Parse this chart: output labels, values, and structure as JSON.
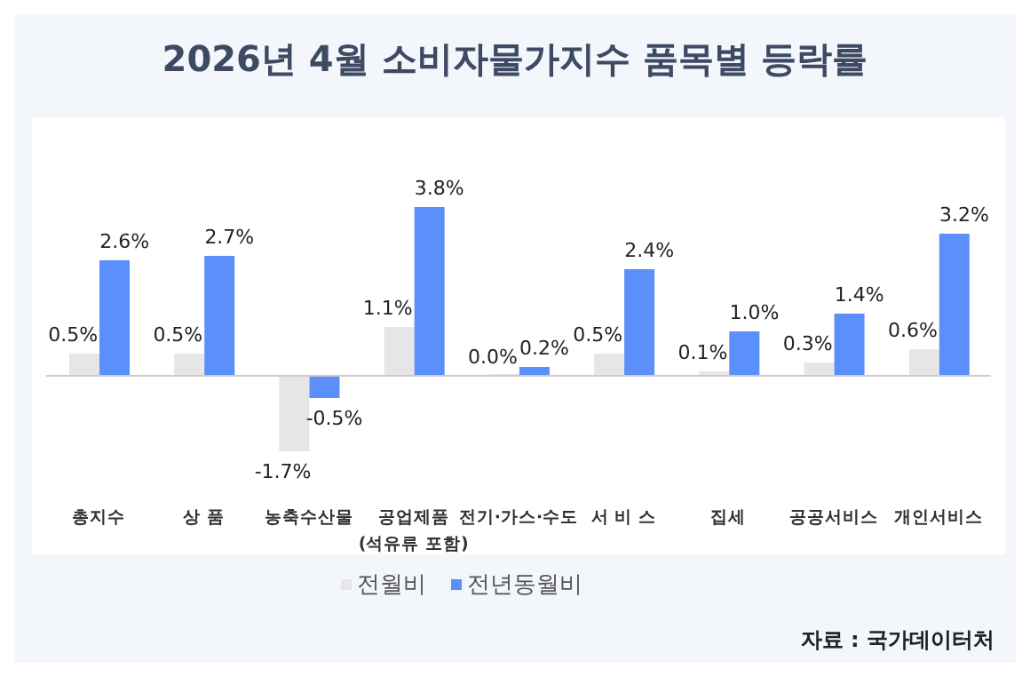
{
  "chart_data": {
    "type": "bar",
    "title": "2026년 4월 소비자물가지수 품목별 등락률",
    "categories": [
      "총지수",
      "상 품",
      "농축수산물",
      "공업제품\n(석유류 포함)",
      "전기·가스·수도",
      "서 비 스",
      "집세",
      "공공서비스",
      "개인서비스"
    ],
    "series": [
      {
        "name": "전월비",
        "color": "#e6e6e6",
        "values": [
          0.5,
          0.5,
          -1.7,
          1.1,
          0.0,
          0.5,
          0.1,
          0.3,
          0.6
        ],
        "value_labels": [
          "0.5%",
          "0.5%",
          "-1.7%",
          "1.1%",
          "0.0%",
          "0.5%",
          "0.1%",
          "0.3%",
          "0.6%"
        ]
      },
      {
        "name": "전년동월비",
        "color": "#5b8ff9",
        "values": [
          2.6,
          2.7,
          -0.5,
          3.8,
          0.2,
          2.4,
          1.0,
          1.4,
          3.2
        ],
        "value_labels": [
          "2.6%",
          "2.7%",
          "-0.5%",
          "3.8%",
          "0.2%",
          "2.4%",
          "1.0%",
          "1.4%",
          "3.2%"
        ]
      }
    ],
    "tick_labels": "x",
    "legend": "bottom",
    "annotations": [
      "자료 : 국가데이터처"
    ]
  }
}
